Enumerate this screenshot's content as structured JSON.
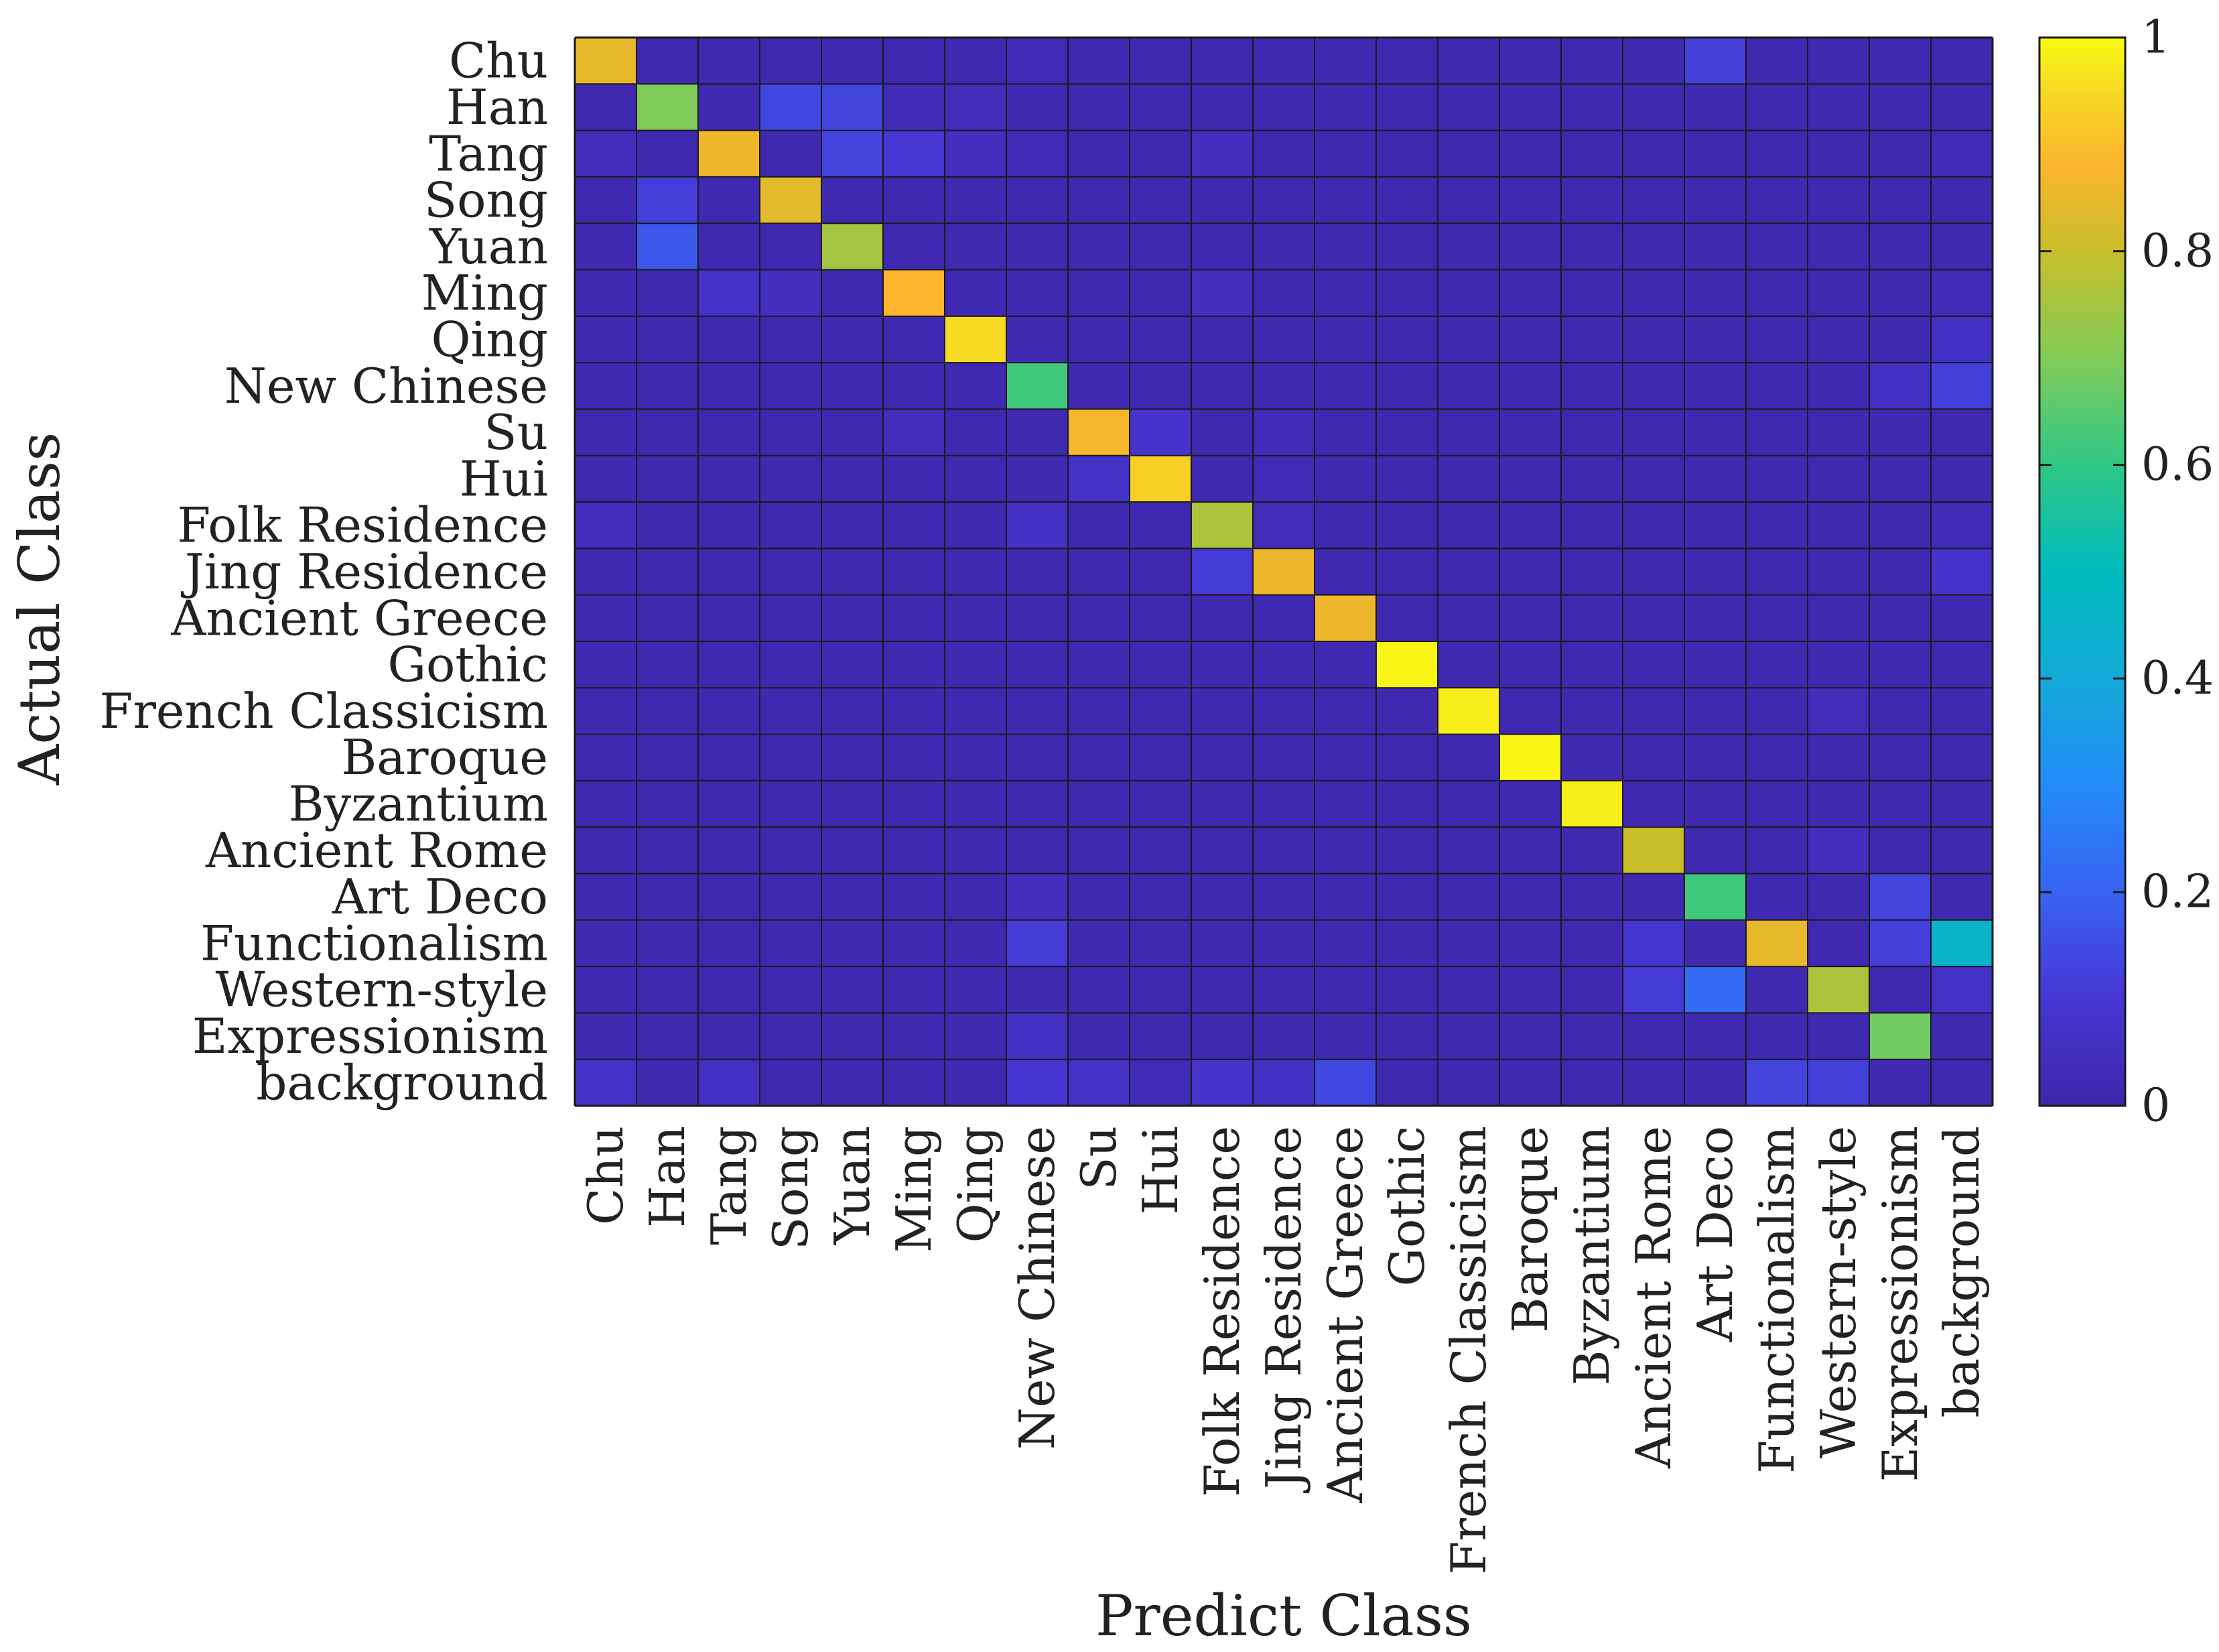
{
  "chart_data": {
    "type": "heatmap",
    "title": "",
    "xlabel": "Predict Class",
    "ylabel": "Actual Class",
    "row_labels": [
      "Chu",
      "Han",
      "Tang",
      "Song",
      "Yuan",
      "Ming",
      "Qing",
      "New Chinese",
      "Su",
      "Hui",
      "Folk Residence",
      "Jing Residence",
      "Ancient Greece",
      "Gothic",
      "French Classicism",
      "Baroque",
      "Byzantium",
      "Ancient Rome",
      "Art Deco",
      "Functionalism",
      "Western-style",
      "Expressionism",
      "background"
    ],
    "col_labels": [
      "Chu",
      "Han",
      "Tang",
      "Song",
      "Yuan",
      "Ming",
      "Qing",
      "New Chinese",
      "Su",
      "Hui",
      "Folk Residence",
      "Jing Residence",
      "Ancient Greece",
      "Gothic",
      "French Classicism",
      "Baroque",
      "Byzantium",
      "Ancient Rome",
      "Art Deco",
      "Functionalism",
      "Western-style",
      "Expressionism",
      "background"
    ],
    "colorbar": {
      "colormap": "parula",
      "range": [
        0,
        1
      ],
      "ticks": [
        0,
        0.2,
        0.4,
        0.6,
        0.8,
        1
      ],
      "tick_labels": [
        "0",
        "0.2",
        "0.4",
        "0.6",
        "0.8",
        "1"
      ]
    },
    "base_value": 0.02,
    "matrix": [
      [
        0.85,
        0.02,
        0.02,
        0.02,
        0.02,
        0.02,
        0.02,
        0.03,
        0.02,
        0.02,
        0.02,
        0.02,
        0.02,
        0.02,
        0.02,
        0.02,
        0.02,
        0.02,
        0.12,
        0.02,
        0.02,
        0.02,
        0.02
      ],
      [
        0.02,
        0.7,
        0.02,
        0.14,
        0.13,
        0.03,
        0.04,
        0.02,
        0.02,
        0.02,
        0.02,
        0.02,
        0.02,
        0.02,
        0.02,
        0.02,
        0.02,
        0.02,
        0.02,
        0.02,
        0.02,
        0.02,
        0.02
      ],
      [
        0.04,
        0.02,
        0.86,
        0.02,
        0.13,
        0.1,
        0.05,
        0.03,
        0.02,
        0.02,
        0.05,
        0.02,
        0.02,
        0.02,
        0.02,
        0.02,
        0.02,
        0.02,
        0.02,
        0.02,
        0.02,
        0.02,
        0.03
      ],
      [
        0.02,
        0.12,
        0.02,
        0.84,
        0.02,
        0.02,
        0.02,
        0.02,
        0.02,
        0.02,
        0.02,
        0.02,
        0.02,
        0.02,
        0.02,
        0.02,
        0.02,
        0.02,
        0.02,
        0.02,
        0.02,
        0.02,
        0.02
      ],
      [
        0.02,
        0.17,
        0.02,
        0.02,
        0.75,
        0.02,
        0.02,
        0.02,
        0.02,
        0.02,
        0.02,
        0.02,
        0.02,
        0.02,
        0.02,
        0.02,
        0.02,
        0.02,
        0.02,
        0.02,
        0.02,
        0.02,
        0.02
      ],
      [
        0.02,
        0.02,
        0.07,
        0.05,
        0.02,
        0.88,
        0.02,
        0.02,
        0.02,
        0.02,
        0.05,
        0.02,
        0.02,
        0.02,
        0.02,
        0.02,
        0.02,
        0.02,
        0.02,
        0.02,
        0.02,
        0.02,
        0.03
      ],
      [
        0.02,
        0.02,
        0.02,
        0.02,
        0.02,
        0.02,
        0.95,
        0.02,
        0.02,
        0.02,
        0.02,
        0.02,
        0.02,
        0.02,
        0.02,
        0.02,
        0.02,
        0.02,
        0.02,
        0.02,
        0.02,
        0.02,
        0.06
      ],
      [
        0.02,
        0.02,
        0.02,
        0.02,
        0.02,
        0.02,
        0.02,
        0.62,
        0.02,
        0.02,
        0.02,
        0.02,
        0.02,
        0.02,
        0.02,
        0.02,
        0.02,
        0.02,
        0.02,
        0.02,
        0.02,
        0.06,
        0.12
      ],
      [
        0.02,
        0.02,
        0.02,
        0.02,
        0.02,
        0.04,
        0.02,
        0.02,
        0.87,
        0.08,
        0.02,
        0.03,
        0.02,
        0.02,
        0.02,
        0.02,
        0.02,
        0.02,
        0.02,
        0.02,
        0.02,
        0.02,
        0.02
      ],
      [
        0.02,
        0.02,
        0.02,
        0.02,
        0.02,
        0.02,
        0.02,
        0.02,
        0.07,
        0.93,
        0.02,
        0.03,
        0.02,
        0.02,
        0.02,
        0.02,
        0.02,
        0.02,
        0.02,
        0.02,
        0.02,
        0.02,
        0.02
      ],
      [
        0.05,
        0.02,
        0.02,
        0.02,
        0.02,
        0.02,
        0.02,
        0.06,
        0.02,
        0.02,
        0.76,
        0.04,
        0.02,
        0.02,
        0.02,
        0.02,
        0.02,
        0.02,
        0.02,
        0.02,
        0.02,
        0.02,
        0.03
      ],
      [
        0.02,
        0.02,
        0.02,
        0.02,
        0.02,
        0.02,
        0.02,
        0.02,
        0.02,
        0.02,
        0.11,
        0.86,
        0.02,
        0.02,
        0.02,
        0.02,
        0.02,
        0.02,
        0.02,
        0.02,
        0.02,
        0.02,
        0.08
      ],
      [
        0.02,
        0.02,
        0.02,
        0.02,
        0.02,
        0.02,
        0.02,
        0.02,
        0.02,
        0.02,
        0.02,
        0.02,
        0.86,
        0.02,
        0.02,
        0.02,
        0.02,
        0.02,
        0.02,
        0.02,
        0.02,
        0.02,
        0.02
      ],
      [
        0.02,
        0.02,
        0.02,
        0.02,
        0.02,
        0.02,
        0.02,
        0.02,
        0.02,
        0.02,
        0.02,
        0.02,
        0.02,
        0.99,
        0.02,
        0.02,
        0.02,
        0.02,
        0.02,
        0.02,
        0.02,
        0.02,
        0.02
      ],
      [
        0.02,
        0.02,
        0.02,
        0.02,
        0.02,
        0.02,
        0.02,
        0.02,
        0.02,
        0.02,
        0.02,
        0.02,
        0.02,
        0.02,
        0.98,
        0.02,
        0.02,
        0.02,
        0.02,
        0.02,
        0.04,
        0.02,
        0.02
      ],
      [
        0.02,
        0.02,
        0.02,
        0.02,
        0.02,
        0.02,
        0.02,
        0.02,
        0.02,
        0.02,
        0.02,
        0.02,
        0.02,
        0.02,
        0.02,
        0.99,
        0.02,
        0.02,
        0.02,
        0.02,
        0.02,
        0.02,
        0.02
      ],
      [
        0.02,
        0.02,
        0.02,
        0.02,
        0.02,
        0.02,
        0.02,
        0.02,
        0.02,
        0.02,
        0.02,
        0.02,
        0.02,
        0.02,
        0.02,
        0.02,
        0.98,
        0.02,
        0.02,
        0.02,
        0.02,
        0.02,
        0.02
      ],
      [
        0.02,
        0.02,
        0.02,
        0.02,
        0.02,
        0.02,
        0.02,
        0.02,
        0.02,
        0.02,
        0.02,
        0.02,
        0.02,
        0.02,
        0.02,
        0.02,
        0.02,
        0.8,
        0.02,
        0.02,
        0.05,
        0.02,
        0.02
      ],
      [
        0.02,
        0.02,
        0.02,
        0.02,
        0.02,
        0.02,
        0.02,
        0.05,
        0.02,
        0.02,
        0.02,
        0.02,
        0.02,
        0.02,
        0.02,
        0.02,
        0.02,
        0.02,
        0.62,
        0.02,
        0.02,
        0.13,
        0.02
      ],
      [
        0.02,
        0.02,
        0.02,
        0.02,
        0.02,
        0.02,
        0.02,
        0.11,
        0.02,
        0.02,
        0.02,
        0.02,
        0.02,
        0.02,
        0.02,
        0.02,
        0.02,
        0.09,
        0.02,
        0.85,
        0.02,
        0.12,
        0.45
      ],
      [
        0.02,
        0.02,
        0.02,
        0.02,
        0.02,
        0.02,
        0.02,
        0.02,
        0.02,
        0.02,
        0.02,
        0.02,
        0.02,
        0.02,
        0.02,
        0.02,
        0.02,
        0.11,
        0.22,
        0.02,
        0.76,
        0.02,
        0.07
      ],
      [
        0.02,
        0.02,
        0.02,
        0.02,
        0.02,
        0.02,
        0.02,
        0.06,
        0.02,
        0.02,
        0.02,
        0.02,
        0.02,
        0.02,
        0.02,
        0.02,
        0.02,
        0.02,
        0.02,
        0.02,
        0.02,
        0.68,
        0.02
      ],
      [
        0.07,
        0.02,
        0.06,
        0.02,
        0.02,
        0.02,
        0.02,
        0.09,
        0.07,
        0.03,
        0.08,
        0.06,
        0.14,
        0.02,
        0.02,
        0.02,
        0.02,
        0.02,
        0.02,
        0.13,
        0.12,
        0.02,
        0.02
      ]
    ]
  }
}
